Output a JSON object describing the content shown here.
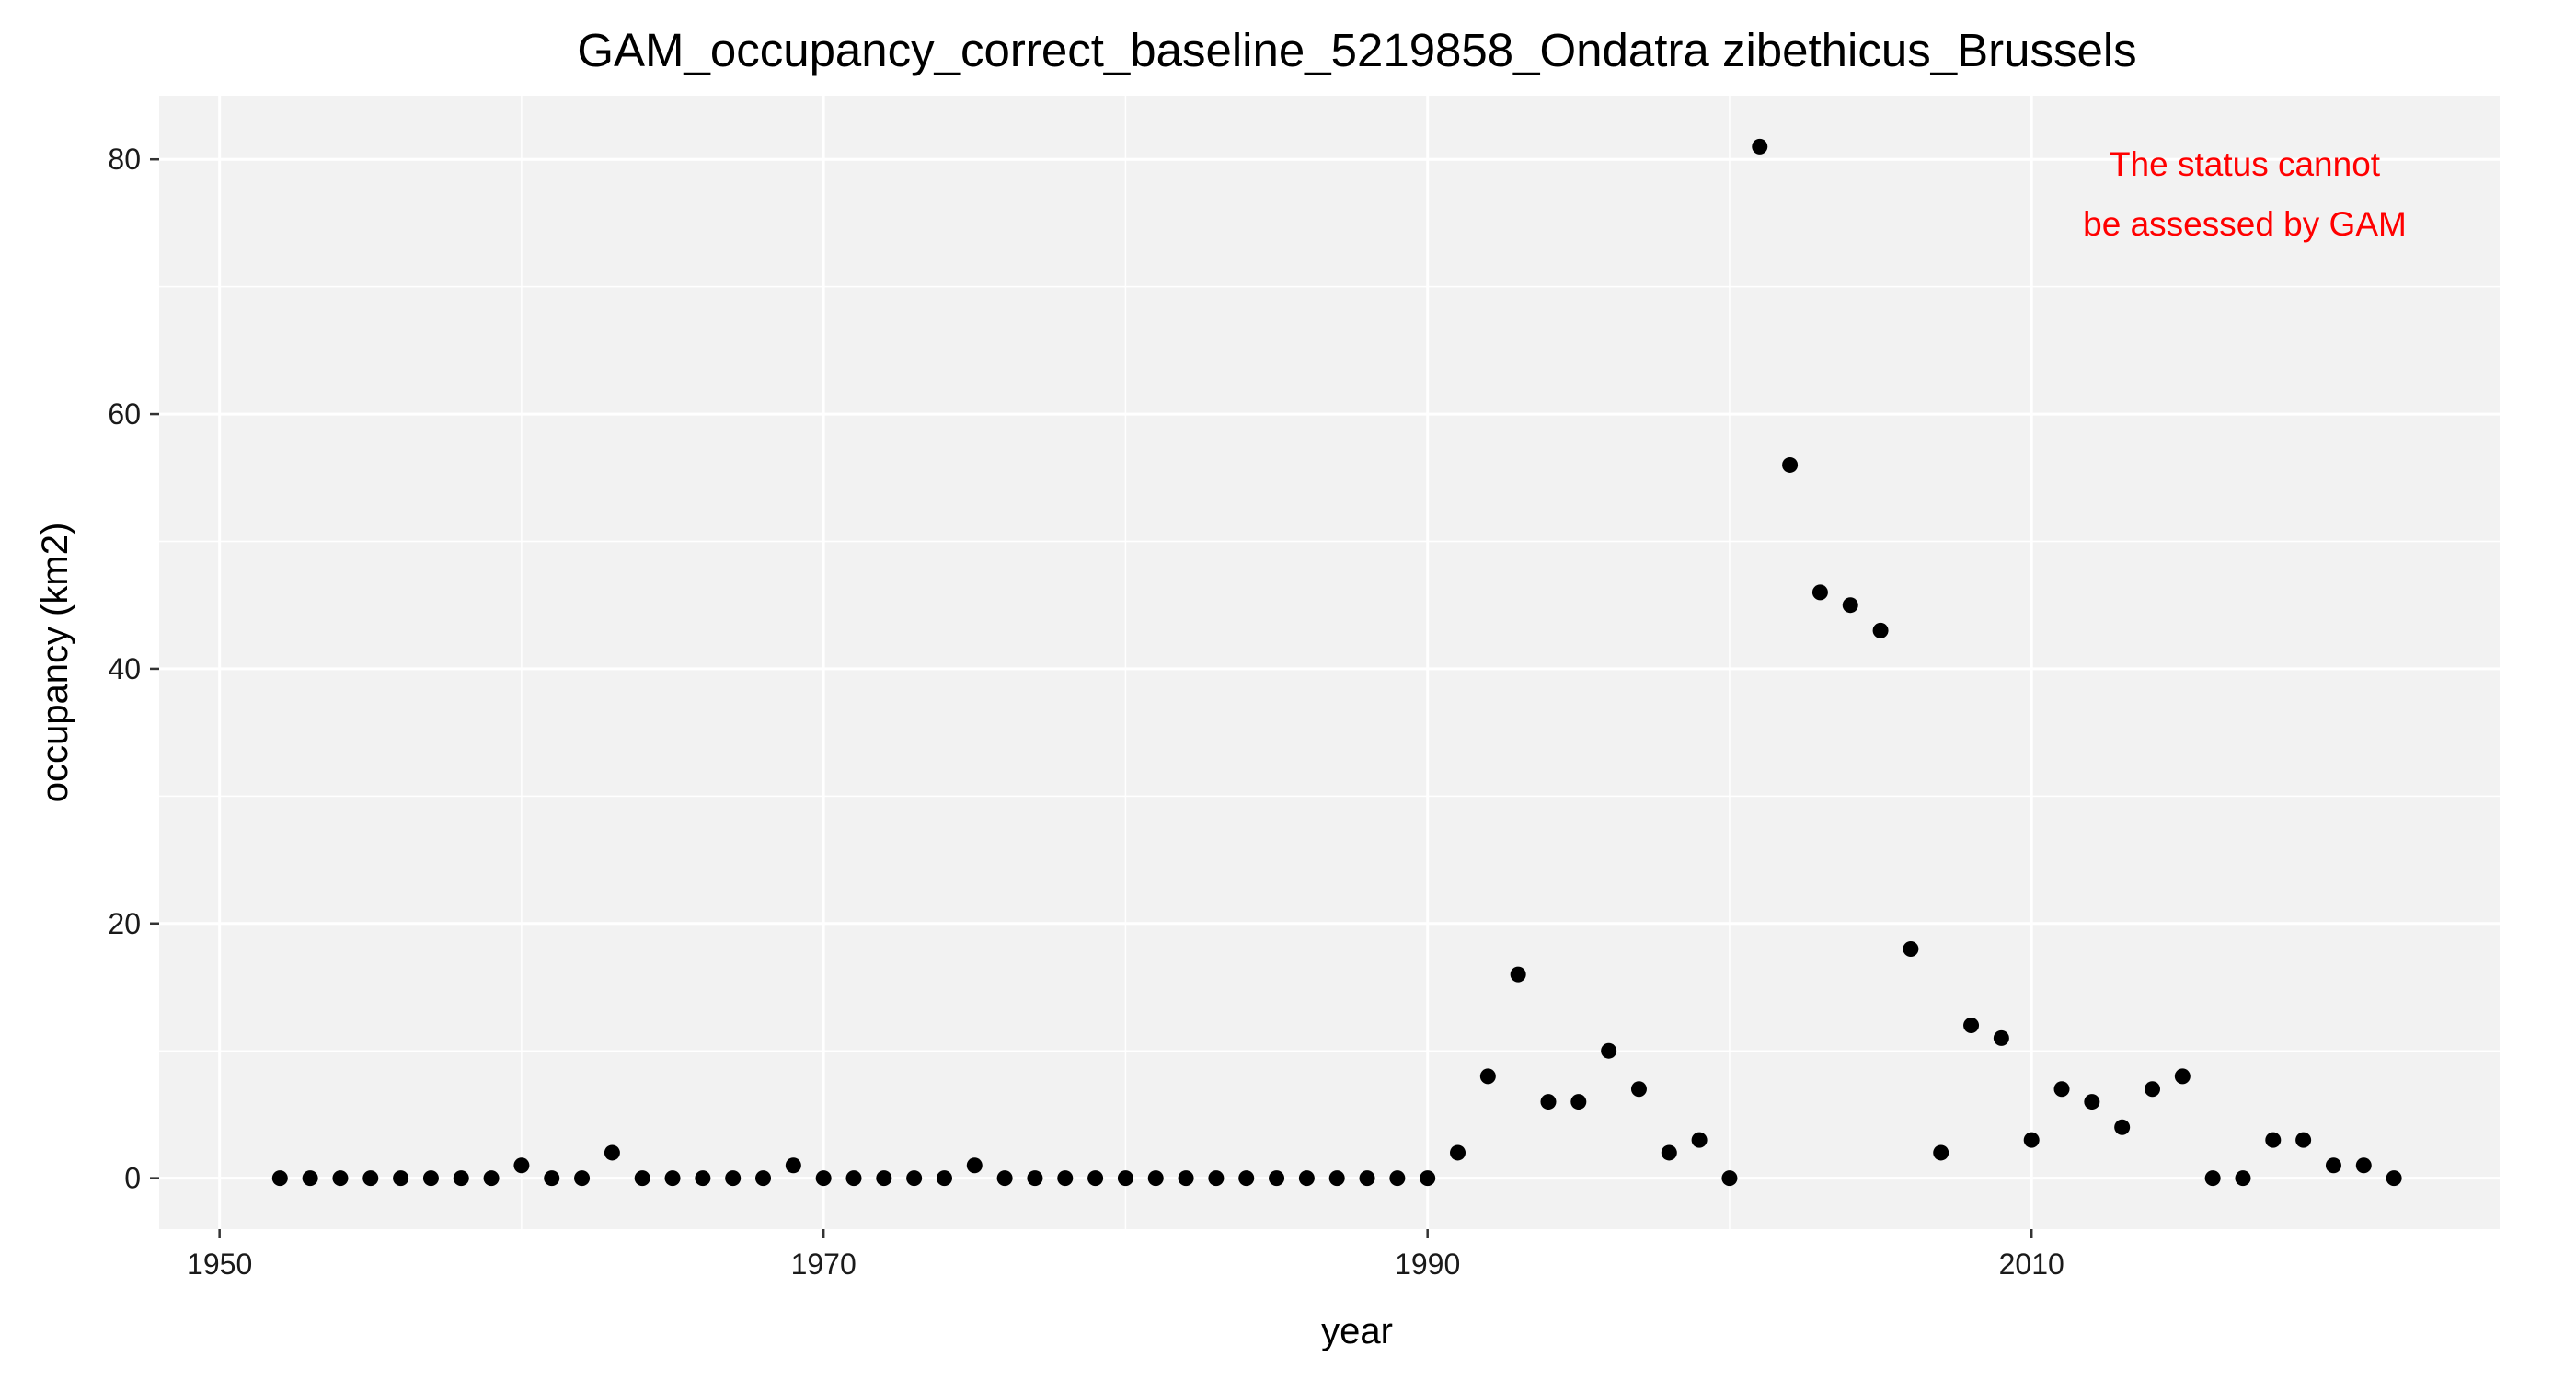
{
  "chart_data": {
    "type": "scatter",
    "title": "GAM_occupancy_correct_baseline_5219858_Ondatra zibethicus_Brussels",
    "xlabel": "year",
    "ylabel": "occupancy (km2)",
    "xlim": [
      1948,
      2025.5
    ],
    "ylim": [
      -4,
      85
    ],
    "x_ticks": [
      1950,
      1970,
      1990,
      2010
    ],
    "y_ticks": [
      0,
      20,
      40,
      60,
      80
    ],
    "x_tick_labels": [
      "1950",
      "1970",
      "1990",
      "2010"
    ],
    "y_tick_labels": [
      "0",
      "20",
      "40",
      "60",
      "80"
    ],
    "grid": true,
    "panel_background": "#f2f2f2",
    "grid_color": "#ffffff",
    "point_color": "#000000",
    "annotation": {
      "lines": [
        "The status cannot",
        "be assessed by GAM"
      ],
      "color": "#ff0000",
      "placement": "top-right"
    },
    "points": [
      {
        "x": 1952,
        "y": 0
      },
      {
        "x": 1953,
        "y": 0
      },
      {
        "x": 1954,
        "y": 0
      },
      {
        "x": 1955,
        "y": 0
      },
      {
        "x": 1956,
        "y": 0
      },
      {
        "x": 1957,
        "y": 0
      },
      {
        "x": 1958,
        "y": 0
      },
      {
        "x": 1959,
        "y": 0
      },
      {
        "x": 1960,
        "y": 1
      },
      {
        "x": 1961,
        "y": 0
      },
      {
        "x": 1962,
        "y": 0
      },
      {
        "x": 1963,
        "y": 2
      },
      {
        "x": 1964,
        "y": 0
      },
      {
        "x": 1965,
        "y": 0
      },
      {
        "x": 1966,
        "y": 0
      },
      {
        "x": 1967,
        "y": 0
      },
      {
        "x": 1968,
        "y": 0
      },
      {
        "x": 1969,
        "y": 1
      },
      {
        "x": 1970,
        "y": 0
      },
      {
        "x": 1971,
        "y": 0
      },
      {
        "x": 1972,
        "y": 0
      },
      {
        "x": 1973,
        "y": 0
      },
      {
        "x": 1974,
        "y": 0
      },
      {
        "x": 1975,
        "y": 1
      },
      {
        "x": 1976,
        "y": 0
      },
      {
        "x": 1977,
        "y": 0
      },
      {
        "x": 1978,
        "y": 0
      },
      {
        "x": 1979,
        "y": 0
      },
      {
        "x": 1980,
        "y": 0
      },
      {
        "x": 1981,
        "y": 0
      },
      {
        "x": 1982,
        "y": 0
      },
      {
        "x": 1983,
        "y": 0
      },
      {
        "x": 1984,
        "y": 0
      },
      {
        "x": 1985,
        "y": 0
      },
      {
        "x": 1986,
        "y": 0
      },
      {
        "x": 1987,
        "y": 0
      },
      {
        "x": 1988,
        "y": 0
      },
      {
        "x": 1989,
        "y": 0
      },
      {
        "x": 1990,
        "y": 0
      },
      {
        "x": 1991,
        "y": 2
      },
      {
        "x": 1992,
        "y": 8
      },
      {
        "x": 1993,
        "y": 16
      },
      {
        "x": 1994,
        "y": 6
      },
      {
        "x": 1995,
        "y": 6
      },
      {
        "x": 1996,
        "y": 10
      },
      {
        "x": 1997,
        "y": 7
      },
      {
        "x": 1998,
        "y": 2
      },
      {
        "x": 1999,
        "y": 3
      },
      {
        "x": 2000,
        "y": 0
      },
      {
        "x": 2001,
        "y": 81
      },
      {
        "x": 2002,
        "y": 56
      },
      {
        "x": 2003,
        "y": 46
      },
      {
        "x": 2004,
        "y": 45
      },
      {
        "x": 2005,
        "y": 43
      },
      {
        "x": 2006,
        "y": 18
      },
      {
        "x": 2007,
        "y": 2
      },
      {
        "x": 2008,
        "y": 12
      },
      {
        "x": 2009,
        "y": 11
      },
      {
        "x": 2010,
        "y": 3
      },
      {
        "x": 2011,
        "y": 7
      },
      {
        "x": 2012,
        "y": 6
      },
      {
        "x": 2013,
        "y": 4
      },
      {
        "x": 2014,
        "y": 7
      },
      {
        "x": 2015,
        "y": 8
      },
      {
        "x": 2016,
        "y": 0
      },
      {
        "x": 2017,
        "y": 0
      },
      {
        "x": 2018,
        "y": 3
      },
      {
        "x": 2019,
        "y": 3
      },
      {
        "x": 2020,
        "y": 1
      },
      {
        "x": 2021,
        "y": 1
      },
      {
        "x": 2022,
        "y": 0
      }
    ]
  }
}
